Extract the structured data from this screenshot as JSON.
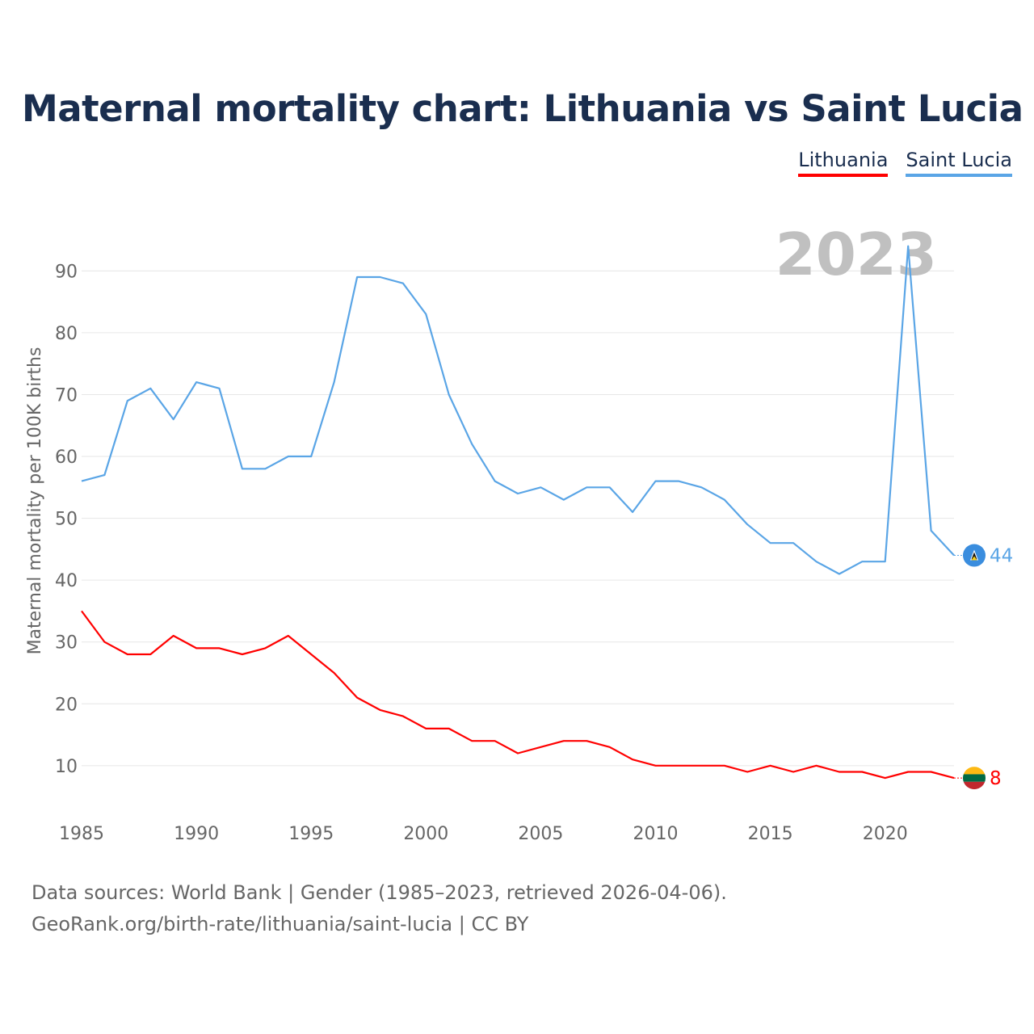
{
  "title": "Maternal mortality chart: Lithuania vs Saint Lucia",
  "legend": [
    {
      "label": "Lithuania",
      "color": "#ff0000"
    },
    {
      "label": "Saint Lucia",
      "color": "#5aa5e6"
    }
  ],
  "footer": {
    "line1": "Data sources: World Bank | Gender (1985–2023, retrieved 2026-04-06).",
    "line2": "GeoRank.org/birth-rate/lithuania/saint-lucia | CC BY"
  },
  "chart_data": {
    "type": "line",
    "title": "Maternal mortality chart: Lithuania vs Saint Lucia",
    "xlabel": "",
    "ylabel": "Maternal mortality per 100K births",
    "year_label": "2023",
    "x": [
      1985,
      1986,
      1987,
      1988,
      1989,
      1990,
      1991,
      1992,
      1993,
      1994,
      1995,
      1996,
      1997,
      1998,
      1999,
      2000,
      2001,
      2002,
      2003,
      2004,
      2005,
      2006,
      2007,
      2008,
      2009,
      2010,
      2011,
      2012,
      2013,
      2014,
      2015,
      2016,
      2017,
      2018,
      2019,
      2020,
      2021,
      2022,
      2023
    ],
    "xlim": [
      1985,
      2023
    ],
    "ylim": [
      2.4,
      101.8
    ],
    "xticks": [
      1985,
      1990,
      1995,
      2000,
      2005,
      2010,
      2015,
      2020
    ],
    "yticks": [
      10,
      20,
      30,
      40,
      50,
      60,
      70,
      80,
      90
    ],
    "grid": true,
    "legend_position": "top-right",
    "series": [
      {
        "name": "Lithuania",
        "color": "#ff0000",
        "end_label": "8",
        "values": [
          35,
          30,
          28,
          28,
          31,
          29,
          29,
          28,
          29,
          31,
          28,
          25,
          21,
          19,
          18,
          16,
          16,
          14,
          14,
          12,
          13,
          14,
          14,
          13,
          11,
          10,
          10,
          10,
          10,
          9,
          10,
          9,
          10,
          9,
          9,
          8,
          9,
          9,
          8
        ]
      },
      {
        "name": "Saint Lucia",
        "color": "#5aa5e6",
        "end_label": "44",
        "values": [
          56,
          57,
          69,
          71,
          66,
          72,
          71,
          58,
          58,
          60,
          60,
          72,
          89,
          89,
          88,
          83,
          70,
          62,
          56,
          54,
          55,
          53,
          55,
          55,
          51,
          56,
          56,
          55,
          53,
          49,
          46,
          46,
          43,
          41,
          43,
          43,
          94,
          48,
          44
        ]
      }
    ]
  }
}
